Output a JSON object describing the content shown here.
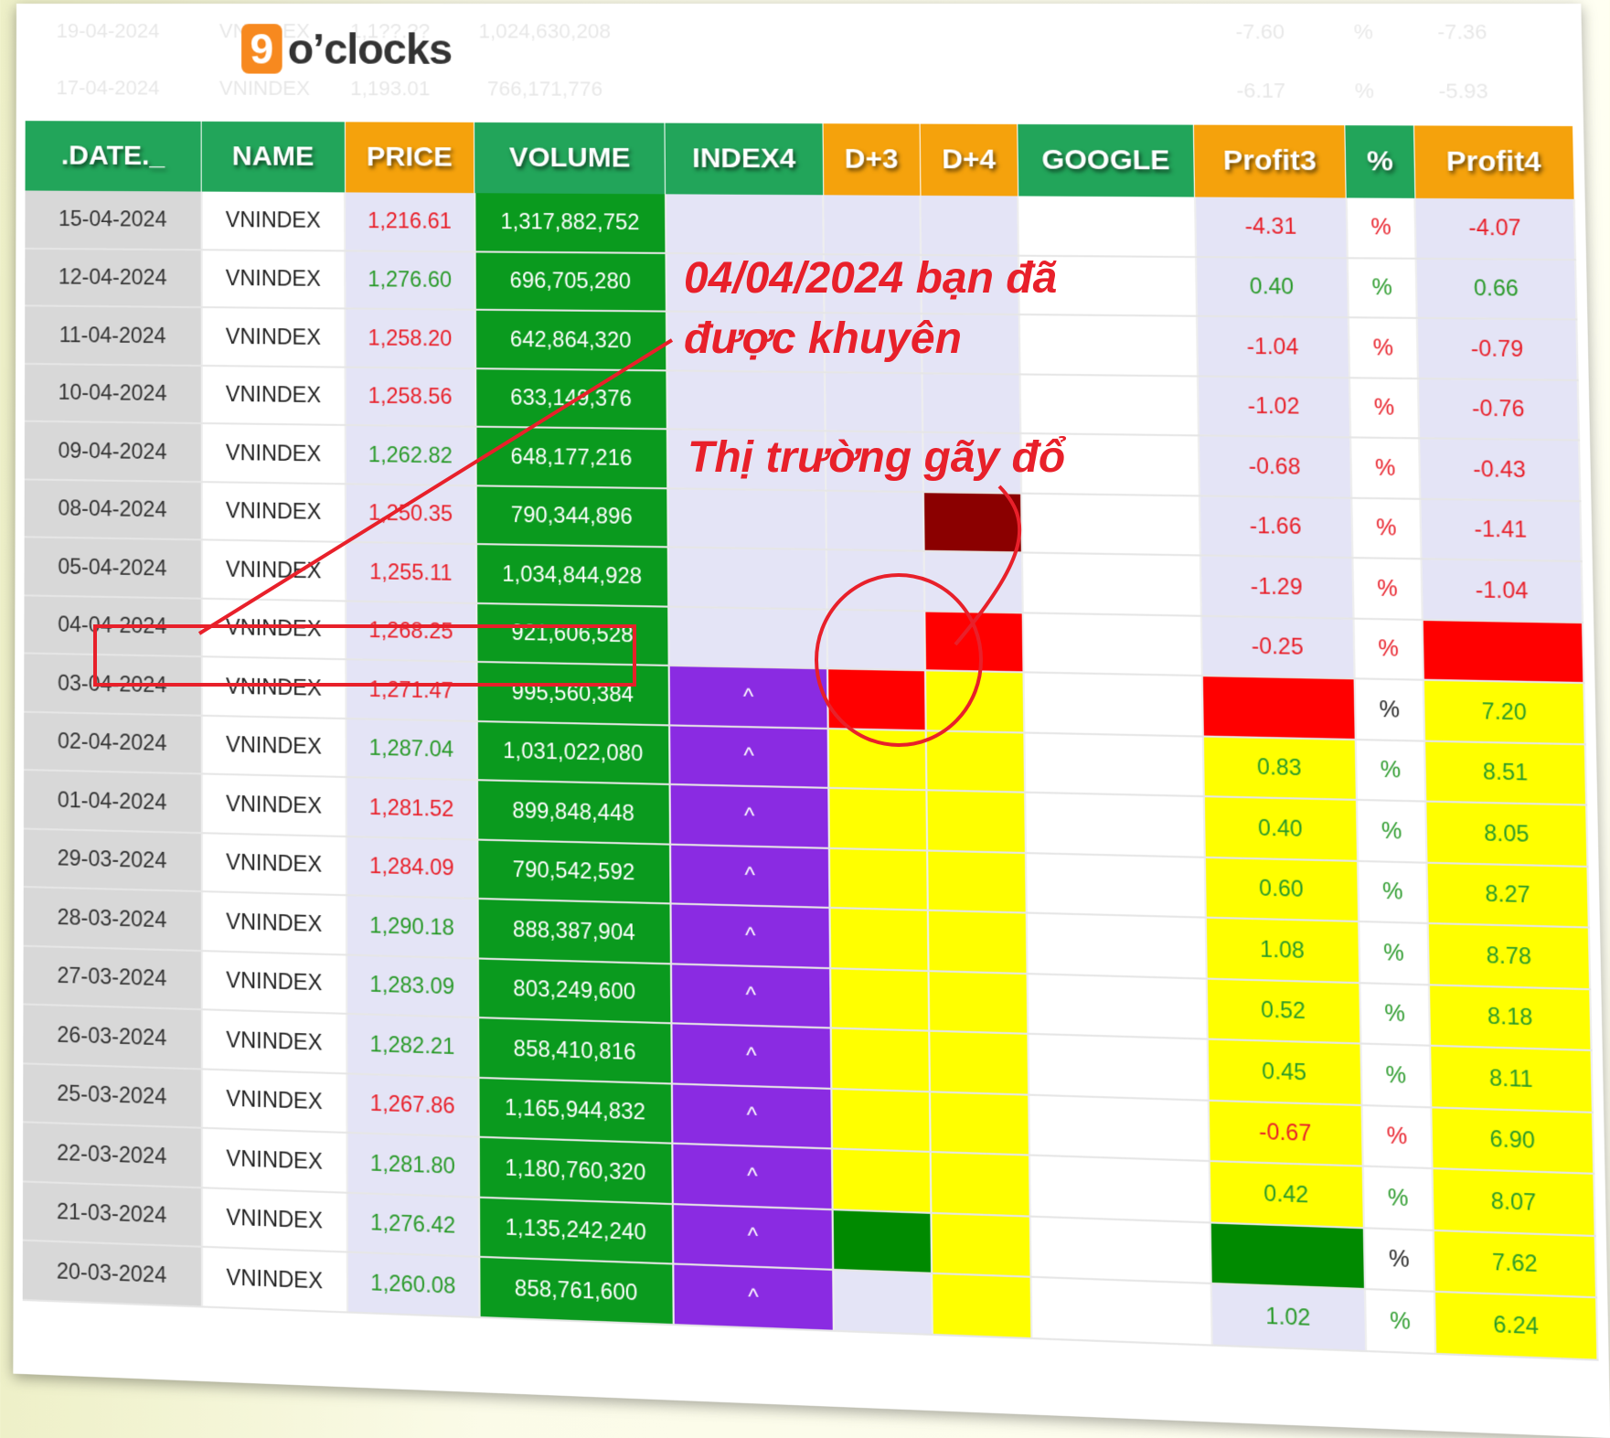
{
  "logo": {
    "digit": "9",
    "text": "o’clocks"
  },
  "faded_rows": [
    {
      "date": "19-04-2024",
      "name": "VNINDEX",
      "price": "1,1??.??",
      "volume": "1,024,630,208",
      "profit3": "-7.60",
      "pct": "%",
      "profit4": "-7.36"
    },
    {
      "date": "17-04-2024",
      "name": "VNINDEX",
      "price": "1,193.01",
      "volume": "766,171,776",
      "profit3": "-6.17",
      "pct": "%",
      "profit4": "-5.93"
    }
  ],
  "headers": [
    ".DATE._",
    "NAME",
    "PRICE",
    "VOLUME",
    "INDEX4",
    "D+3",
    "D+4",
    "GOOGLE",
    "Profit3",
    "%",
    "Profit4"
  ],
  "header_colors": {
    "green": "#22a55a",
    "orange": "#f5a20c"
  },
  "rows": [
    {
      "date": "15-04-2024",
      "name": "VNINDEX",
      "price": "1,216.61",
      "pc": "red",
      "volume": "1,317,882,752",
      "index4": "",
      "i4": "lav",
      "d3": "lav",
      "d4": "lav",
      "p3": "-4.31",
      "p3c": "red",
      "p3bg": "lav",
      "pct": "%",
      "pctc": "red",
      "p4": "-4.07",
      "p4c": "red",
      "p4bg": "lav"
    },
    {
      "date": "12-04-2024",
      "name": "VNINDEX",
      "price": "1,276.60",
      "pc": "grn",
      "volume": "696,705,280",
      "index4": "",
      "i4": "lav",
      "d3": "lav",
      "d4": "lav",
      "p3": "0.40",
      "p3c": "grn",
      "p3bg": "lav",
      "pct": "%",
      "pctc": "grn",
      "p4": "0.66",
      "p4c": "grn",
      "p4bg": "lav"
    },
    {
      "date": "11-04-2024",
      "name": "VNINDEX",
      "price": "1,258.20",
      "pc": "red",
      "volume": "642,864,320",
      "index4": "",
      "i4": "lav",
      "d3": "lav",
      "d4": "lav",
      "p3": "-1.04",
      "p3c": "red",
      "p3bg": "lav",
      "pct": "%",
      "pctc": "red",
      "p4": "-0.79",
      "p4c": "red",
      "p4bg": "lav"
    },
    {
      "date": "10-04-2024",
      "name": "VNINDEX",
      "price": "1,258.56",
      "pc": "red",
      "volume": "633,149,376",
      "index4": "",
      "i4": "lav",
      "d3": "lav",
      "d4": "lav",
      "p3": "-1.02",
      "p3c": "red",
      "p3bg": "lav",
      "pct": "%",
      "pctc": "red",
      "p4": "-0.76",
      "p4c": "red",
      "p4bg": "lav"
    },
    {
      "date": "09-04-2024",
      "name": "VNINDEX",
      "price": "1,262.82",
      "pc": "grn",
      "volume": "648,177,216",
      "index4": "",
      "i4": "lav",
      "d3": "lav",
      "d4": "lav",
      "p3": "-0.68",
      "p3c": "red",
      "p3bg": "lav",
      "pct": "%",
      "pctc": "red",
      "p4": "-0.43",
      "p4c": "red",
      "p4bg": "lav"
    },
    {
      "date": "08-04-2024",
      "name": "VNINDEX",
      "price": "1,250.35",
      "pc": "red",
      "volume": "790,344,896",
      "index4": "",
      "i4": "lav",
      "d3": "lav",
      "d4": "darkred",
      "p3": "-1.66",
      "p3c": "red",
      "p3bg": "lav",
      "pct": "%",
      "pctc": "red",
      "p4": "-1.41",
      "p4c": "red",
      "p4bg": "lav"
    },
    {
      "date": "05-04-2024",
      "name": "VNINDEX",
      "price": "1,255.11",
      "pc": "red",
      "volume": "1,034,844,928",
      "index4": "",
      "i4": "lav",
      "d3": "lav",
      "d4": "lav",
      "p3": "-1.29",
      "p3c": "red",
      "p3bg": "lav",
      "pct": "%",
      "pctc": "red",
      "p4": "-1.04",
      "p4c": "red",
      "p4bg": "lav"
    },
    {
      "date": "04-04-2024",
      "name": "VNINDEX",
      "price": "1,268.25",
      "pc": "red",
      "volume": "921,606,528",
      "index4": "",
      "i4": "lav",
      "d3": "lav",
      "d4": "red",
      "p3": "-0.25",
      "p3c": "red",
      "p3bg": "lav",
      "pct": "%",
      "pctc": "red",
      "p4": "",
      "p4c": "red",
      "p4bg": "red"
    },
    {
      "date": "03-04-2024",
      "name": "VNINDEX",
      "price": "1,271.47",
      "pc": "red",
      "volume": "995,560,384",
      "index4": "^",
      "i4": "purple",
      "d3": "red",
      "d4": "yellow",
      "p3": "",
      "p3c": "red",
      "p3bg": "red",
      "pct": "%",
      "pctc": "blk",
      "p4": "7.20",
      "p4c": "grn",
      "p4bg": "yellow"
    },
    {
      "date": "02-04-2024",
      "name": "VNINDEX",
      "price": "1,287.04",
      "pc": "grn",
      "volume": "1,031,022,080",
      "index4": "^",
      "i4": "purple",
      "d3": "yellow",
      "d4": "yellow",
      "p3": "0.83",
      "p3c": "grn",
      "p3bg": "yellow",
      "pct": "%",
      "pctc": "grn",
      "p4": "8.51",
      "p4c": "grn",
      "p4bg": "yellow"
    },
    {
      "date": "01-04-2024",
      "name": "VNINDEX",
      "price": "1,281.52",
      "pc": "red",
      "volume": "899,848,448",
      "index4": "^",
      "i4": "purple",
      "d3": "yellow",
      "d4": "yellow",
      "p3": "0.40",
      "p3c": "grn",
      "p3bg": "yellow",
      "pct": "%",
      "pctc": "grn",
      "p4": "8.05",
      "p4c": "grn",
      "p4bg": "yellow"
    },
    {
      "date": "29-03-2024",
      "name": "VNINDEX",
      "price": "1,284.09",
      "pc": "red",
      "volume": "790,542,592",
      "index4": "^",
      "i4": "purple",
      "d3": "yellow",
      "d4": "yellow",
      "p3": "0.60",
      "p3c": "grn",
      "p3bg": "yellow",
      "pct": "%",
      "pctc": "grn",
      "p4": "8.27",
      "p4c": "grn",
      "p4bg": "yellow"
    },
    {
      "date": "28-03-2024",
      "name": "VNINDEX",
      "price": "1,290.18",
      "pc": "grn",
      "volume": "888,387,904",
      "index4": "^",
      "i4": "purple",
      "d3": "yellow",
      "d4": "yellow",
      "p3": "1.08",
      "p3c": "grn",
      "p3bg": "yellow",
      "pct": "%",
      "pctc": "grn",
      "p4": "8.78",
      "p4c": "grn",
      "p4bg": "yellow"
    },
    {
      "date": "27-03-2024",
      "name": "VNINDEX",
      "price": "1,283.09",
      "pc": "grn",
      "volume": "803,249,600",
      "index4": "^",
      "i4": "purple",
      "d3": "yellow",
      "d4": "yellow",
      "p3": "0.52",
      "p3c": "grn",
      "p3bg": "yellow",
      "pct": "%",
      "pctc": "grn",
      "p4": "8.18",
      "p4c": "grn",
      "p4bg": "yellow"
    },
    {
      "date": "26-03-2024",
      "name": "VNINDEX",
      "price": "1,282.21",
      "pc": "grn",
      "volume": "858,410,816",
      "index4": "^",
      "i4": "purple",
      "d3": "yellow",
      "d4": "yellow",
      "p3": "0.45",
      "p3c": "grn",
      "p3bg": "yellow",
      "pct": "%",
      "pctc": "grn",
      "p4": "8.11",
      "p4c": "grn",
      "p4bg": "yellow"
    },
    {
      "date": "25-03-2024",
      "name": "VNINDEX",
      "price": "1,267.86",
      "pc": "red",
      "volume": "1,165,944,832",
      "index4": "^",
      "i4": "purple",
      "d3": "yellow",
      "d4": "yellow",
      "p3": "-0.67",
      "p3c": "red",
      "p3bg": "yellow",
      "pct": "%",
      "pctc": "red",
      "p4": "6.90",
      "p4c": "grn",
      "p4bg": "yellow"
    },
    {
      "date": "22-03-2024",
      "name": "VNINDEX",
      "price": "1,281.80",
      "pc": "grn",
      "volume": "1,180,760,320",
      "index4": "^",
      "i4": "purple",
      "d3": "yellow",
      "d4": "yellow",
      "p3": "0.42",
      "p3c": "grn",
      "p3bg": "yellow",
      "pct": "%",
      "pctc": "grn",
      "p4": "8.07",
      "p4c": "grn",
      "p4bg": "yellow"
    },
    {
      "date": "21-03-2024",
      "name": "VNINDEX",
      "price": "1,276.42",
      "pc": "grn",
      "volume": "1,135,242,240",
      "index4": "^",
      "i4": "purple",
      "d3": "green",
      "d4": "yellow",
      "p3": "",
      "p3c": "grn",
      "p3bg": "green",
      "pct": "%",
      "pctc": "blk",
      "p4": "7.62",
      "p4c": "grn",
      "p4bg": "yellow"
    },
    {
      "date": "20-03-2024",
      "name": "VNINDEX",
      "price": "1,260.08",
      "pc": "grn",
      "volume": "858,761,600",
      "index4": "^",
      "i4": "purple",
      "d3": "lav",
      "d4": "yellow",
      "p3": "1.02",
      "p3c": "grn",
      "p3bg": "lav",
      "pct": "%",
      "pctc": "grn",
      "p4": "6.24",
      "p4c": "grn",
      "p4bg": "yellow"
    }
  ],
  "annotations": {
    "advice": "04/04/2024 bạn đã được khuyên",
    "crash": "Thị trường gãy đổ",
    "color": "#e8202a"
  }
}
